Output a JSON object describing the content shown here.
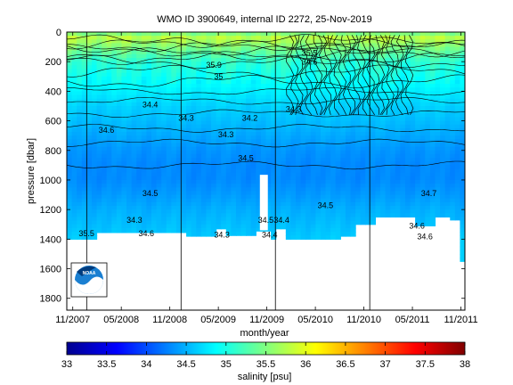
{
  "chart_data": {
    "type": "heatmap",
    "title": "WMO ID 3900649, internal ID 2272, 25-Nov-2019",
    "xlabel": "month/year",
    "ylabel": "pressure [dbar]",
    "x_ticks": [
      "11/2007",
      "05/2008",
      "11/2008",
      "05/2009",
      "11/2009",
      "05/2010",
      "11/2010",
      "05/2011",
      "11/2011"
    ],
    "y_ticks": [
      0,
      200,
      400,
      600,
      800,
      1000,
      1200,
      1400,
      1600,
      1800
    ],
    "ylim": [
      1880,
      0
    ],
    "y_reversed": true,
    "colorbar": {
      "label": "salinity [psu]",
      "ticks": [
        "33",
        "33.5",
        "34",
        "34.5",
        "35",
        "35.5",
        "36",
        "36.5",
        "37",
        "37.5",
        "38"
      ],
      "range": [
        33,
        38
      ],
      "colormap": "jet"
    },
    "vertical_lines_at": [
      "01/2008",
      "01/2009",
      "01/2010",
      "01/2011"
    ],
    "contour_labels": [
      "34.4",
      "34.3",
      "34.3",
      "34.5",
      "34.4",
      "34.5",
      "34.6",
      "34.6",
      "34.5",
      "34.7",
      "34.6",
      "35.5",
      "35.9",
      "35",
      "35.5",
      "34.6",
      "34.5",
      "34.3",
      "34.4",
      "34.6",
      "34.3",
      "34.2",
      "34.3"
    ],
    "profile_depth_dbar": [
      [
        0,
        1400
      ],
      [
        0.05,
        1400
      ],
      [
        0.08,
        1355
      ],
      [
        0.29,
        1355
      ],
      [
        0.3,
        1380
      ],
      [
        0.36,
        1380
      ],
      [
        0.37,
        1330
      ],
      [
        0.39,
        1330
      ],
      [
        0.4,
        1375
      ],
      [
        0.47,
        1375
      ],
      [
        0.48,
        1345
      ],
      [
        0.5,
        1345
      ],
      [
        0.51,
        1400
      ],
      [
        0.52,
        1400
      ],
      [
        0.53,
        1330
      ],
      [
        0.54,
        1330
      ],
      [
        0.55,
        1400
      ],
      [
        0.68,
        1400
      ],
      [
        0.69,
        1380
      ],
      [
        0.72,
        1380
      ],
      [
        0.73,
        1300
      ],
      [
        0.76,
        1300
      ],
      [
        0.77,
        1250
      ],
      [
        0.87,
        1250
      ],
      [
        0.88,
        1310
      ],
      [
        0.91,
        1310
      ],
      [
        0.92,
        1250
      ],
      [
        0.95,
        1250
      ],
      [
        0.96,
        1270
      ],
      [
        0.98,
        1270
      ],
      [
        0.985,
        1550
      ],
      [
        1.0,
        1550
      ]
    ],
    "white_gap_dbar": {
      "x": [
        0.485,
        0.505
      ],
      "depth": [
        965,
        1340
      ]
    },
    "salinity_profile": [
      [
        0,
        35.4
      ],
      [
        40,
        35.8
      ],
      [
        100,
        35.5
      ],
      [
        200,
        35.1
      ],
      [
        300,
        34.95
      ],
      [
        400,
        34.8
      ],
      [
        500,
        34.65
      ],
      [
        600,
        34.55
      ],
      [
        700,
        34.45
      ],
      [
        800,
        34.35
      ],
      [
        900,
        34.3
      ],
      [
        1000,
        34.3
      ],
      [
        1100,
        34.38
      ],
      [
        1200,
        34.48
      ],
      [
        1300,
        34.55
      ],
      [
        1400,
        34.62
      ],
      [
        1550,
        34.68
      ]
    ],
    "logo": "NOAA"
  }
}
